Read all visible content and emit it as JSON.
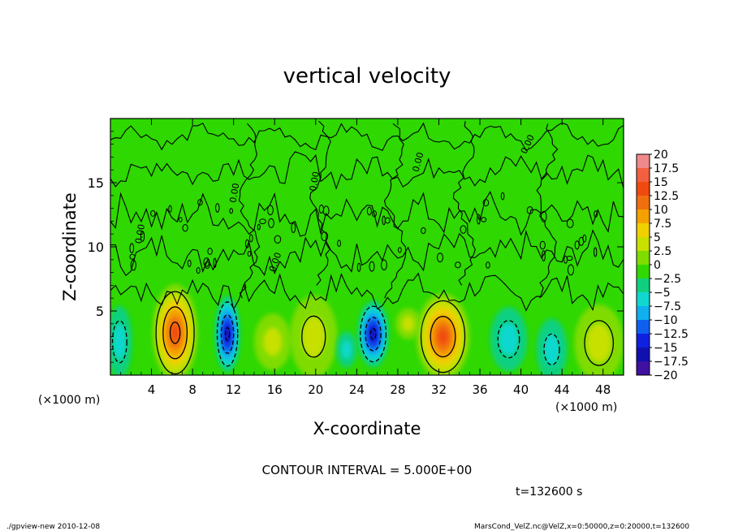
{
  "chart_data": {
    "type": "heatmap",
    "title": "vertical velocity",
    "xlabel": "X-coordinate",
    "ylabel": "Z-coordinate",
    "x_unit_left": "(×1000 m)",
    "x_unit_right": "(×1000 m)",
    "xlim": [
      0,
      50
    ],
    "ylim": [
      0,
      20
    ],
    "x_ticks": [
      "4",
      "8",
      "12",
      "16",
      "20",
      "24",
      "28",
      "32",
      "36",
      "40",
      "44",
      "48"
    ],
    "x_tick_values": [
      4,
      8,
      12,
      16,
      20,
      24,
      28,
      32,
      36,
      40,
      44,
      48
    ],
    "y_ticks": [
      "5",
      "10",
      "15"
    ],
    "y_tick_values": [
      5,
      10,
      15
    ],
    "contour_interval_text": "CONTOUR INTERVAL = 5.000E+00",
    "time_text": "t=132600 s",
    "contour_label": "0.00",
    "colorbar": {
      "labels": [
        "20",
        "17.5",
        "15",
        "12.5",
        "10",
        "7.5",
        "5",
        "2.5",
        "0",
        "−2.5",
        "−5",
        "−7.5",
        "−10",
        "−12.5",
        "−15",
        "−17.5",
        "−20"
      ],
      "values": [
        20,
        17.5,
        15,
        12.5,
        10,
        7.5,
        5,
        2.5,
        0,
        -2.5,
        -5,
        -7.5,
        -10,
        -12.5,
        -15,
        -17.5,
        -20
      ],
      "colors": [
        "#f08a8a",
        "#f26040",
        "#f04a10",
        "#f07010",
        "#f4a000",
        "#f0d000",
        "#c8e000",
        "#80dc00",
        "#30d800",
        "#10d080",
        "#10d8d0",
        "#10b0f0",
        "#1060f0",
        "#1020e0",
        "#1010b0",
        "#4010a0",
        "#7010c0"
      ]
    },
    "background_color": "#2ed800",
    "cells": [
      {
        "x": 6.3,
        "z": 3.3,
        "rx": 2.2,
        "rz": 3.8,
        "peak": 16
      },
      {
        "x": 32.4,
        "z": 3.0,
        "rx": 2.6,
        "rz": 3.4,
        "peak": 14
      },
      {
        "x": 11.4,
        "z": 3.2,
        "rx": 1.2,
        "rz": 3.0,
        "peak": -15
      },
      {
        "x": 25.6,
        "z": 3.2,
        "rx": 1.5,
        "rz": 2.6,
        "peak": -15
      },
      {
        "x": 0.9,
        "z": 2.6,
        "rx": 1.2,
        "rz": 2.8,
        "peak": -6
      },
      {
        "x": 19.8,
        "z": 3.0,
        "rx": 2.3,
        "rz": 3.2,
        "peak": 5
      },
      {
        "x": 15.8,
        "z": 2.6,
        "rx": 1.8,
        "rz": 2.2,
        "peak": 3
      },
      {
        "x": 38.8,
        "z": 2.8,
        "rx": 1.8,
        "rz": 2.5,
        "peak": -6
      },
      {
        "x": 43.0,
        "z": 2.0,
        "rx": 1.5,
        "rz": 2.4,
        "peak": -5
      },
      {
        "x": 47.6,
        "z": 2.5,
        "rx": 2.4,
        "rz": 3.0,
        "peak": 6
      },
      {
        "x": 23.0,
        "z": 2.0,
        "rx": 1.0,
        "rz": 1.4,
        "peak": -4
      },
      {
        "x": 29.0,
        "z": 4.0,
        "rx": 1.2,
        "rz": 1.2,
        "peak": 2
      }
    ]
  },
  "footer": {
    "left": "./gpview-new  2010-12-08",
    "right": "MarsCond_VelZ.nc@VelZ,x=0:50000,z=0:20000,t=132600"
  }
}
